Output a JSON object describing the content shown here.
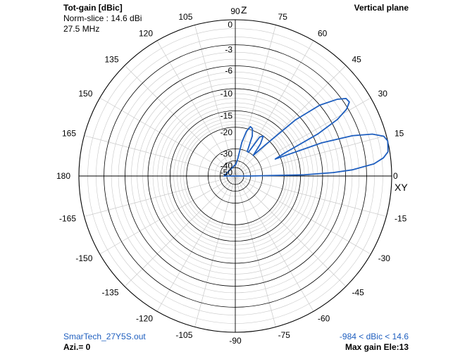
{
  "header": {
    "title": "Tot-gain [dBic]",
    "norm": "Norm-slice : 14.6 dBi",
    "freq": "27.5 MHz",
    "plane": "Vertical plane"
  },
  "footer": {
    "file": "SmarTech_27Y5S.out",
    "azimuth": "Azi.= 0",
    "range": "-984 < dBic < 14.6",
    "maxgain": "Max gain Ele:13"
  },
  "axis": {
    "z_label": "Z",
    "xy_label": "XY"
  },
  "colors": {
    "pattern": "#1f5fbf",
    "grid_major": "#000000",
    "grid_minor": "#c8c8c8"
  },
  "chart_data": {
    "type": "polar",
    "plane": "vertical",
    "angle_unit": "degrees elevation",
    "angle_tick_labels": [
      "0",
      "15",
      "30",
      "45",
      "60",
      "75",
      "90",
      "105",
      "120",
      "135",
      "150",
      "165",
      "180",
      "-165",
      "-150",
      "-135",
      "-120",
      "-105",
      "-90",
      "-75",
      "-60",
      "-45",
      "-30",
      "-15"
    ],
    "radial_tick_labels": [
      "0",
      "-3",
      "-6",
      "-10",
      "-15",
      "-20",
      "-30",
      "-40",
      "-50"
    ],
    "radial_db_levels": [
      0,
      -3,
      -6,
      -10,
      -15,
      -20,
      -30,
      -40,
      -50
    ],
    "series": [
      {
        "angles": [
          0,
          1,
          2,
          3,
          5,
          7,
          9,
          11,
          13,
          15,
          17,
          19,
          21,
          23,
          25,
          27,
          29,
          31,
          33,
          35,
          37,
          40,
          43,
          46,
          49,
          52,
          55,
          58,
          61,
          64,
          67,
          70,
          73,
          76,
          79,
          82,
          85,
          88,
          90
        ],
        "gain_dbic": [
          -40,
          -14,
          -8,
          -5,
          -2,
          -0.8,
          -0.2,
          -0.1,
          0,
          -0.3,
          -1.5,
          -4,
          -9,
          -22,
          -18,
          -9,
          -5,
          -3.2,
          -2.4,
          -2.5,
          -3.5,
          -6,
          -11,
          -22,
          -30,
          -23,
          -20,
          -21,
          -30,
          -30,
          -22,
          -19.5,
          -19,
          -21,
          -26,
          -38,
          -42,
          -45,
          -45
        ]
      }
    ]
  }
}
